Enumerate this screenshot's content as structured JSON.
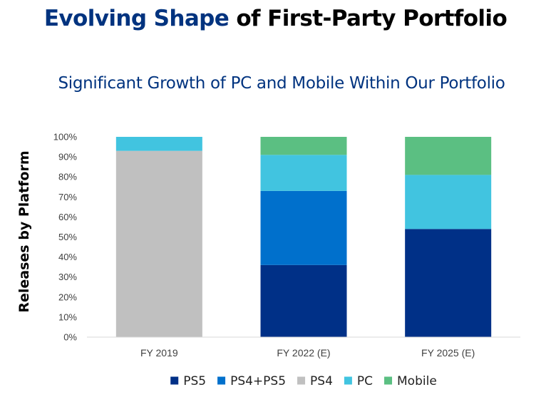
{
  "header": {
    "title_accent": "Evolving Shape",
    "title_rest": " of First-Party Portfolio",
    "subtitle": "Significant Growth of PC and Mobile Within Our Portfolio"
  },
  "chart_data": {
    "type": "bar",
    "stacked": true,
    "title": "Significant Growth of PC and Mobile Within Our Portfolio",
    "xlabel": "",
    "ylabel": "Releases by Platform",
    "ylim": [
      0,
      100
    ],
    "yticks": [
      0,
      10,
      20,
      30,
      40,
      50,
      60,
      70,
      80,
      90,
      100
    ],
    "ytick_labels": [
      "0%",
      "10%",
      "20%",
      "30%",
      "40%",
      "50%",
      "60%",
      "70%",
      "80%",
      "90%",
      "100%"
    ],
    "categories": [
      "FY 2019",
      "FY 2022 (E)",
      "FY 2025 (E)"
    ],
    "series": [
      {
        "name": "PS5",
        "color": "#003087",
        "values": [
          0,
          36,
          54
        ]
      },
      {
        "name": "PS4+PS5",
        "color": "#0070cc",
        "values": [
          0,
          37,
          0
        ]
      },
      {
        "name": "PS4",
        "color": "#c0c0c0",
        "values": [
          93,
          0,
          0
        ]
      },
      {
        "name": "PC",
        "color": "#41c4e0",
        "values": [
          7,
          18,
          27
        ]
      },
      {
        "name": "Mobile",
        "color": "#5bbf82",
        "values": [
          0,
          9,
          19
        ]
      }
    ],
    "legend_position": "bottom",
    "grid": false
  }
}
